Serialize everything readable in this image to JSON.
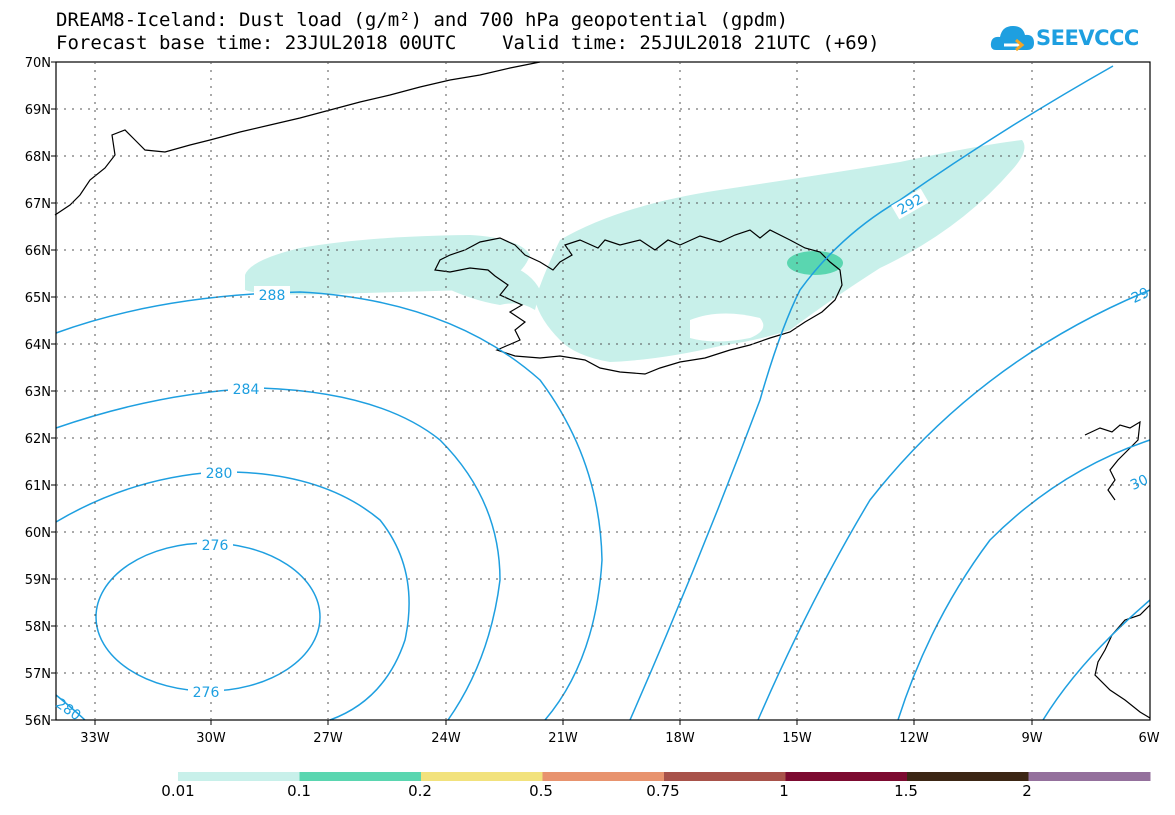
{
  "title_line1": "DREAM8-Iceland: Dust load (g/m²) and 700 hPa geopotential (gpdm)",
  "title_line2": "Forecast base time: 23JUL2018 00UTC    Valid time: 25JUL2018 21UTC (+69)",
  "logo_text": "SEEVCCC",
  "lat_labels": [
    "70N",
    "69N",
    "68N",
    "67N",
    "66N",
    "65N",
    "64N",
    "63N",
    "62N",
    "61N",
    "60N",
    "59N",
    "58N",
    "57N",
    "56N"
  ],
  "lon_labels": [
    "33W",
    "30W",
    "27W",
    "24W",
    "21W",
    "18W",
    "15W",
    "12W",
    "9W",
    "6W"
  ],
  "contour_labels": {
    "c288": "288",
    "c284": "284",
    "c280": "280",
    "c276_top": "276",
    "c276_bottom": "276",
    "c280_corner": "280",
    "c292": "292",
    "c29_edge": "29",
    "c30_edge": "30"
  },
  "colorbar": {
    "colors": [
      "#c8f0ea",
      "#5ad6b0",
      "#f2e27c",
      "#e8936e",
      "#a8524a",
      "#7c0a30",
      "#3c2614",
      "#94709c"
    ],
    "labels": [
      "0.01",
      "0.1",
      "0.2",
      "0.5",
      "0.75",
      "1",
      "1.5",
      "2"
    ]
  },
  "contour_color": "#1e9fe0"
}
